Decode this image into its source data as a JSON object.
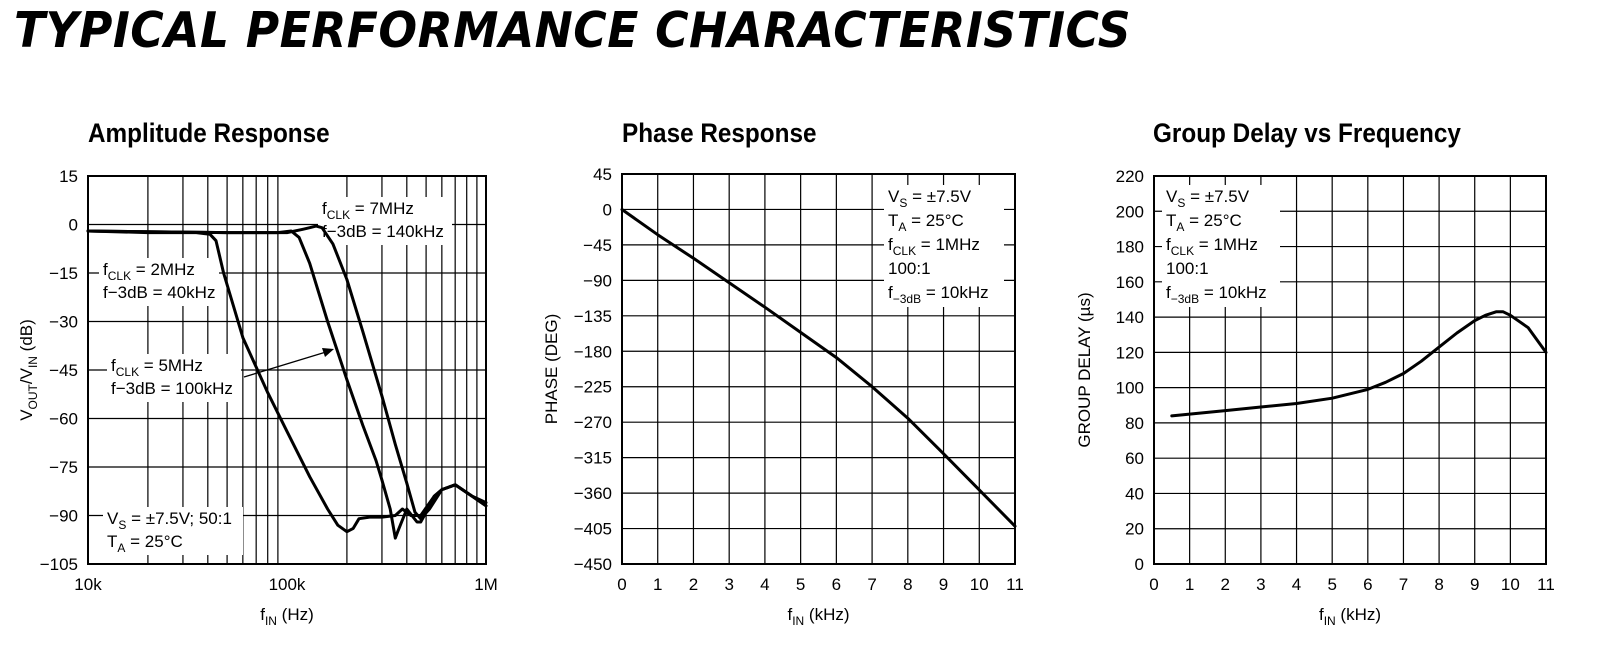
{
  "page_title": "TYPICAL PERFORMANCE CHARACTERISTICS",
  "chart_data": [
    {
      "type": "line",
      "title": "Amplitude Response",
      "xlabel": {
        "main": "f",
        "sub": "IN",
        "rest": " (Hz)"
      },
      "ylabel": {
        "p1": "V",
        "s1": "OUT",
        "p2": "/V",
        "s2": "IN",
        "p3": " (dB)"
      },
      "x_scale": "log",
      "xlim": [
        10000,
        1000000
      ],
      "ylim": [
        -105,
        15
      ],
      "x_ticks": [
        {
          "v": 10000,
          "label": "10k"
        },
        {
          "v": 100000,
          "label": "100k"
        },
        {
          "v": 1000000,
          "label": "1M"
        }
      ],
      "y_ticks": [
        {
          "v": 15,
          "label": "15"
        },
        {
          "v": 0,
          "label": "0"
        },
        {
          "v": -15,
          "label": "−15"
        },
        {
          "v": -30,
          "label": "−30"
        },
        {
          "v": -45,
          "label": "−45"
        },
        {
          "v": -60,
          "label": "−60"
        },
        {
          "v": -75,
          "label": "−75"
        },
        {
          "v": -90,
          "label": "−90"
        },
        {
          "v": -105,
          "label": "−105"
        }
      ],
      "grid": true,
      "series": [
        {
          "x": [
            10000,
            20000,
            35000,
            41000,
            44000,
            48000,
            60000,
            80000,
            100000,
            130000,
            160000,
            180000,
            200000,
            215000,
            230000,
            260000,
            300000,
            350000,
            380000,
            420000,
            470000,
            550000,
            600000,
            700000,
            850000,
            1000000
          ],
          "y": [
            -2,
            -2.5,
            -2.5,
            -3,
            -5,
            -15,
            -35,
            -52,
            -64,
            -78,
            -88,
            -93,
            -95,
            -94,
            -91,
            -90.5,
            -90.5,
            -90,
            -88,
            -90,
            -90,
            -84,
            -82,
            -80.5,
            -84,
            -86
          ]
        },
        {
          "x": [
            10000,
            50000,
            90000,
            105000,
            115000,
            130000,
            160000,
            200000,
            240000,
            280000,
            300000,
            330000,
            350000,
            360000,
            400000,
            450000,
            470000,
            500000,
            550000,
            600000,
            700000,
            850000,
            1000000
          ],
          "y": [
            -2,
            -2.5,
            -2.5,
            -2,
            -4,
            -12,
            -30,
            -48,
            -62,
            -73,
            -79,
            -88,
            -97,
            -95,
            -88,
            -92,
            -92,
            -89,
            -84,
            -82,
            -80.5,
            -84,
            -87
          ]
        },
        {
          "x": [
            10000,
            50000,
            100000,
            120000,
            130000,
            140000,
            150000,
            170000,
            200000,
            240000,
            300000,
            350000,
            400000,
            440000,
            470000,
            520000,
            600000,
            700000,
            850000,
            1000000
          ],
          "y": [
            -2,
            -2.5,
            -2.5,
            -1.5,
            -1,
            -0.5,
            -1,
            -6,
            -17,
            -33,
            -53,
            -68,
            -80,
            -89,
            -91,
            -88,
            -82,
            -80.5,
            -84,
            -87
          ]
        }
      ],
      "annotations": [
        {
          "lines": [
            {
              "p": "f",
              "s": "CLK",
              "r": " = 7MHz"
            },
            {
              "p": "f−3dB = 140kHz",
              "s": "",
              "r": ""
            }
          ]
        },
        {
          "lines": [
            {
              "p": "f",
              "s": "CLK",
              "r": " = 2MHz"
            },
            {
              "p": "f−3dB = 40kHz",
              "s": "",
              "r": ""
            }
          ]
        },
        {
          "lines": [
            {
              "p": "f",
              "s": "CLK",
              "r": " = 5MHz"
            },
            {
              "p": "f−3dB = 100kHz",
              "s": "",
              "r": ""
            }
          ]
        },
        {
          "lines": [
            {
              "p": "V",
              "s": "S",
              "r": " = ±7.5V; 50:1"
            },
            {
              "p": "T",
              "s": "A",
              "r": " = 25°C"
            }
          ]
        }
      ]
    },
    {
      "type": "line",
      "title": "Phase Response",
      "xlabel": {
        "main": "f",
        "sub": "IN",
        "rest": " (kHz)"
      },
      "ylabel": "PHASE (DEG)",
      "xlim": [
        0,
        11
      ],
      "ylim": [
        -450,
        45
      ],
      "x_ticks": [
        0,
        1,
        2,
        3,
        4,
        5,
        6,
        7,
        8,
        9,
        10,
        11
      ],
      "y_ticks": [
        {
          "v": 45,
          "label": "45"
        },
        {
          "v": 0,
          "label": "0"
        },
        {
          "v": -45,
          "label": "−45"
        },
        {
          "v": -90,
          "label": "−90"
        },
        {
          "v": -135,
          "label": "−135"
        },
        {
          "v": -180,
          "label": "−180"
        },
        {
          "v": -225,
          "label": "−225"
        },
        {
          "v": -270,
          "label": "−270"
        },
        {
          "v": -315,
          "label": "−315"
        },
        {
          "v": -360,
          "label": "−360"
        },
        {
          "v": -405,
          "label": "−405"
        },
        {
          "v": -450,
          "label": "−450"
        }
      ],
      "grid": true,
      "series": [
        {
          "x": [
            0,
            1,
            2,
            3,
            4,
            5,
            6,
            7,
            8,
            9,
            10,
            11
          ],
          "y": [
            0,
            -32,
            -62,
            -93,
            -124,
            -156,
            -188,
            -225,
            -265,
            -310,
            -356,
            -402
          ]
        }
      ],
      "annotations": [
        {
          "lines": [
            {
              "p": "V",
              "s": "S",
              "r": " = ±7.5V"
            },
            {
              "p": "T",
              "s": "A",
              "r": " = 25°C"
            },
            {
              "p": "f",
              "s": "CLK",
              "r": " = 1MHz"
            },
            {
              "p": "100:1",
              "s": "",
              "r": ""
            },
            {
              "p": "f",
              "s": "−3dB",
              "r": " = 10kHz"
            }
          ]
        }
      ]
    },
    {
      "type": "line",
      "title": "Group Delay vs Frequency",
      "xlabel": {
        "main": "f",
        "sub": "IN",
        "rest": " (kHz)"
      },
      "ylabel": "GROUP DELAY (µs)",
      "xlim": [
        0,
        11
      ],
      "ylim": [
        0,
        220
      ],
      "x_ticks": [
        0,
        1,
        2,
        3,
        4,
        5,
        6,
        7,
        8,
        9,
        10,
        11
      ],
      "y_ticks": [
        {
          "v": 220,
          "label": "220"
        },
        {
          "v": 200,
          "label": "200"
        },
        {
          "v": 180,
          "label": "180"
        },
        {
          "v": 160,
          "label": "160"
        },
        {
          "v": 140,
          "label": "140"
        },
        {
          "v": 120,
          "label": "120"
        },
        {
          "v": 100,
          "label": "100"
        },
        {
          "v": 80,
          "label": "80"
        },
        {
          "v": 60,
          "label": "60"
        },
        {
          "v": 40,
          "label": "40"
        },
        {
          "v": 20,
          "label": "20"
        },
        {
          "v": 0,
          "label": "0"
        }
      ],
      "grid": true,
      "series": [
        {
          "x": [
            0.5,
            1,
            2,
            3,
            4,
            5,
            6,
            6.5,
            7,
            7.5,
            8,
            8.5,
            9,
            9.3,
            9.6,
            9.8,
            10,
            10.5,
            11
          ],
          "y": [
            84,
            85,
            87,
            89,
            91,
            94,
            99,
            103,
            108,
            115,
            123,
            131,
            138,
            141,
            143,
            143,
            141,
            134,
            120
          ]
        }
      ],
      "annotations": [
        {
          "lines": [
            {
              "p": "V",
              "s": "S",
              "r": " = ±7.5V"
            },
            {
              "p": "T",
              "s": "A",
              "r": " = 25°C"
            },
            {
              "p": "f",
              "s": "CLK",
              "r": " = 1MHz"
            },
            {
              "p": "100:1",
              "s": "",
              "r": ""
            },
            {
              "p": "f",
              "s": "−3dB",
              "r": " = 10kHz"
            }
          ]
        }
      ]
    }
  ]
}
